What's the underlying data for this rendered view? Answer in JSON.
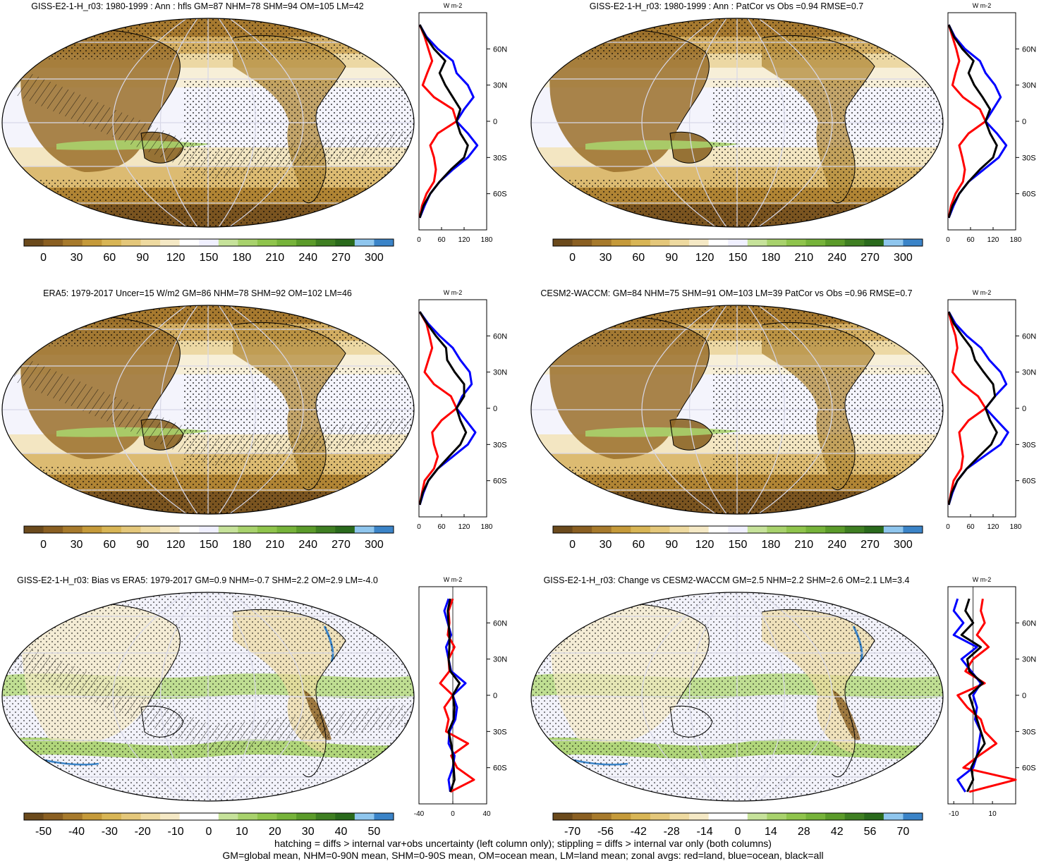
{
  "colors": {
    "land_line": "#ff0000",
    "ocean_line": "#0000ff",
    "all_line": "#000000",
    "full_scale": [
      "#6b4a1c",
      "#8a5f22",
      "#a77a2c",
      "#c59a3a",
      "#d8b555",
      "#e4c77a",
      "#eedaa0",
      "#f5e9c5",
      "#ffffff",
      "#f0f0ff",
      "#c6e29a",
      "#a8d26c",
      "#8fc44c",
      "#76b33a",
      "#5b9b2a",
      "#3f7f22",
      "#2a6a1c",
      "#8fc6ee",
      "#3b84c8"
    ],
    "diff_scale": [
      "#6b4a1c",
      "#8a5f22",
      "#a77a2c",
      "#c59a3a",
      "#d8b555",
      "#e4c77a",
      "#eedaa0",
      "#f5e9c5",
      "#ffffff",
      "#ffffff",
      "#c6e29a",
      "#a8d26c",
      "#8fc44c",
      "#76b33a",
      "#5b9b2a",
      "#3f7f22",
      "#2a6a1c",
      "#8fc6ee",
      "#3b84c8"
    ]
  },
  "zonal_units": "W m-2",
  "chart_data": [
    {
      "type": "heatmap",
      "title": "GISS-E2-1-H_r03: 1980-1999 : Ann : hfls GM=87 NHM=78 SHM=94 OM=105 LM=42",
      "colorbar_labels": [
        "0",
        "30",
        "60",
        "90",
        "120",
        "150",
        "180",
        "210",
        "240",
        "270",
        "300"
      ],
      "zonal_xticks": [
        "0",
        "60",
        "120",
        "180"
      ],
      "zonal_xlim": [
        0,
        180
      ],
      "zonal_yticks": [
        "60N",
        "30N",
        "0",
        "30S",
        "60S"
      ],
      "series": [
        {
          "name": "land",
          "lat": [
            80,
            70,
            60,
            50,
            40,
            30,
            20,
            10,
            0,
            -10,
            -20,
            -30,
            -40,
            -50,
            -60,
            -70,
            -80
          ],
          "values": [
            2,
            15,
            25,
            35,
            22,
            10,
            40,
            90,
            100,
            50,
            30,
            40,
            45,
            40,
            20,
            8,
            2
          ]
        },
        {
          "name": "ocean",
          "lat": [
            80,
            70,
            60,
            50,
            40,
            30,
            20,
            10,
            0,
            -10,
            -20,
            -30,
            -40,
            -50,
            -60,
            -70,
            -80
          ],
          "values": [
            2,
            20,
            50,
            90,
            100,
            130,
            145,
            120,
            100,
            130,
            155,
            130,
            90,
            55,
            30,
            15,
            2
          ]
        },
        {
          "name": "all",
          "lat": [
            80,
            70,
            60,
            50,
            40,
            30,
            20,
            10,
            0,
            -10,
            -20,
            -30,
            -40,
            -50,
            -60,
            -70,
            -80
          ],
          "values": [
            2,
            18,
            40,
            70,
            55,
            70,
            90,
            110,
            100,
            110,
            130,
            120,
            85,
            55,
            30,
            12,
            2
          ]
        }
      ]
    },
    {
      "type": "heatmap",
      "title": "GISS-E2-1-H_r03: 1980-1999 : Ann : PatCor vs Obs =0.94 RMSE=0.7",
      "colorbar_labels": [
        "0",
        "30",
        "60",
        "90",
        "120",
        "150",
        "180",
        "210",
        "240",
        "270",
        "300"
      ],
      "zonal_xticks": [
        "0",
        "60",
        "120",
        "180"
      ],
      "zonal_xlim": [
        0,
        180
      ],
      "zonal_yticks": [
        "60N",
        "30N",
        "0",
        "30S",
        "60S"
      ],
      "series": [
        {
          "name": "land",
          "lat": [
            80,
            70,
            60,
            50,
            40,
            30,
            20,
            10,
            0,
            -10,
            -20,
            -30,
            -40,
            -50,
            -60,
            -70,
            -80
          ],
          "values": [
            2,
            12,
            22,
            30,
            20,
            12,
            40,
            85,
            100,
            55,
            30,
            38,
            45,
            40,
            20,
            8,
            2
          ]
        },
        {
          "name": "ocean",
          "lat": [
            80,
            70,
            60,
            50,
            40,
            30,
            20,
            10,
            0,
            -10,
            -20,
            -30,
            -40,
            -50,
            -60,
            -70,
            -80
          ],
          "values": [
            2,
            18,
            45,
            85,
            100,
            125,
            140,
            120,
            100,
            130,
            155,
            135,
            95,
            55,
            30,
            15,
            2
          ]
        },
        {
          "name": "all",
          "lat": [
            80,
            70,
            60,
            50,
            40,
            30,
            20,
            10,
            0,
            -10,
            -20,
            -30,
            -40,
            -50,
            -60,
            -70,
            -80
          ],
          "values": [
            2,
            16,
            38,
            68,
            55,
            70,
            92,
            112,
            100,
            112,
            130,
            120,
            85,
            55,
            30,
            12,
            2
          ]
        }
      ]
    },
    {
      "type": "heatmap",
      "title": "ERA5: 1979-2017 Uncer=15 W/m2 GM=86 NHM=78 SHM=92 OM=102 LM=46",
      "colorbar_labels": [
        "0",
        "30",
        "60",
        "90",
        "120",
        "150",
        "180",
        "210",
        "240",
        "270",
        "300"
      ],
      "zonal_xticks": [
        "0",
        "60",
        "120",
        "180"
      ],
      "zonal_xlim": [
        0,
        180
      ],
      "zonal_yticks": [
        "60N",
        "30N",
        "0",
        "30S",
        "60S"
      ],
      "series": [
        {
          "name": "land",
          "lat": [
            80,
            70,
            60,
            50,
            40,
            30,
            20,
            10,
            0,
            -10,
            -20,
            -30,
            -40,
            -50,
            -60,
            -70,
            -80
          ],
          "values": [
            2,
            20,
            28,
            35,
            25,
            15,
            40,
            85,
            100,
            60,
            35,
            40,
            50,
            40,
            15,
            8,
            2
          ]
        },
        {
          "name": "ocean",
          "lat": [
            80,
            70,
            60,
            50,
            40,
            30,
            20,
            10,
            0,
            -10,
            -20,
            -30,
            -40,
            -50,
            -60,
            -70,
            -80
          ],
          "values": [
            2,
            25,
            55,
            90,
            110,
            135,
            140,
            115,
            100,
            125,
            150,
            130,
            90,
            50,
            25,
            12,
            2
          ]
        },
        {
          "name": "all",
          "lat": [
            80,
            70,
            60,
            50,
            40,
            30,
            20,
            10,
            0,
            -10,
            -20,
            -30,
            -40,
            -50,
            -60,
            -70,
            -80
          ],
          "values": [
            2,
            22,
            45,
            72,
            75,
            95,
            120,
            120,
            100,
            110,
            125,
            110,
            80,
            50,
            25,
            10,
            2
          ]
        }
      ]
    },
    {
      "type": "heatmap",
      "title": "CESM2-WACCM: GM=84 NHM=75 SHM=91 OM=103 LM=39 PatCor vs Obs =0.96 RMSE=0.7",
      "colorbar_labels": [
        "0",
        "30",
        "60",
        "90",
        "120",
        "150",
        "180",
        "210",
        "240",
        "270",
        "300"
      ],
      "zonal_xticks": [
        "0",
        "60",
        "120",
        "180"
      ],
      "zonal_xlim": [
        0,
        180
      ],
      "zonal_yticks": [
        "60N",
        "30N",
        "0",
        "30S",
        "60S"
      ],
      "series": [
        {
          "name": "land",
          "lat": [
            80,
            70,
            60,
            50,
            40,
            30,
            20,
            10,
            0,
            -10,
            -20,
            -30,
            -40,
            -50,
            -60,
            -70,
            -80
          ],
          "values": [
            2,
            10,
            20,
            25,
            18,
            12,
            38,
            80,
            100,
            55,
            30,
            35,
            40,
            35,
            15,
            8,
            2
          ]
        },
        {
          "name": "ocean",
          "lat": [
            80,
            70,
            60,
            50,
            40,
            30,
            20,
            10,
            0,
            -10,
            -20,
            -30,
            -40,
            -50,
            -60,
            -70,
            -80
          ],
          "values": [
            2,
            20,
            50,
            88,
            110,
            140,
            155,
            125,
            100,
            130,
            160,
            140,
            95,
            50,
            25,
            12,
            2
          ]
        },
        {
          "name": "all",
          "lat": [
            80,
            70,
            60,
            50,
            40,
            30,
            20,
            10,
            0,
            -10,
            -20,
            -30,
            -40,
            -50,
            -60,
            -70,
            -80
          ],
          "values": [
            2,
            16,
            38,
            62,
            72,
            95,
            120,
            125,
            100,
            112,
            130,
            115,
            82,
            50,
            25,
            10,
            2
          ]
        }
      ]
    },
    {
      "type": "heatmap",
      "title": "GISS-E2-1-H_r03: Bias vs ERA5: 1979-2017 GM=0.9 NHM=-0.7 SHM=2.2 OM=2.9 LM=-4.0",
      "colorbar_labels": [
        "-50",
        "-40",
        "-30",
        "-20",
        "-10",
        "0",
        "10",
        "20",
        "30",
        "40",
        "50"
      ],
      "zonal_xticks": [
        "-40",
        "0",
        "40"
      ],
      "zonal_xlim": [
        -40,
        40
      ],
      "zonal_yticks": [
        "60N",
        "30N",
        "0",
        "30S",
        "60S"
      ],
      "series": [
        {
          "name": "land",
          "lat": [
            80,
            70,
            60,
            50,
            40,
            30,
            20,
            10,
            0,
            -10,
            -20,
            -30,
            -40,
            -50,
            -60,
            -70,
            -80
          ],
          "values": [
            0,
            -5,
            -4,
            -6,
            2,
            -5,
            -4,
            -15,
            0,
            -10,
            -5,
            -8,
            18,
            -2,
            5,
            25,
            -3
          ]
        },
        {
          "name": "ocean",
          "lat": [
            80,
            70,
            60,
            50,
            40,
            30,
            20,
            10,
            0,
            -10,
            -20,
            -30,
            -40,
            -50,
            -60,
            -70,
            -80
          ],
          "values": [
            -5,
            -10,
            -6,
            -2,
            -8,
            -5,
            -2,
            15,
            0,
            5,
            3,
            -4,
            -5,
            2,
            0,
            -5,
            -3
          ]
        },
        {
          "name": "all",
          "lat": [
            80,
            70,
            60,
            50,
            40,
            30,
            20,
            10,
            0,
            -10,
            -20,
            -30,
            -40,
            -50,
            -60,
            -70,
            -80
          ],
          "values": [
            -3,
            -6,
            -5,
            -4,
            -4,
            -5,
            -3,
            8,
            0,
            2,
            1,
            -5,
            -2,
            0,
            1,
            2,
            -3
          ]
        }
      ]
    },
    {
      "type": "heatmap",
      "title": "GISS-E2-1-H_r03: Change vs CESM2-WACCM GM=2.5 NHM=2.2 SHM=2.6 OM=2.1 LM=3.4",
      "colorbar_labels": [
        "-70",
        "-56",
        "-42",
        "-28",
        "-14",
        "0",
        "14",
        "28",
        "42",
        "56",
        "70"
      ],
      "zonal_xticks": [
        "-10",
        "10"
      ],
      "zonal_xlim": [
        -13,
        22
      ],
      "zonal_yticks": [
        "60N",
        "30N",
        "0",
        "30S",
        "60S"
      ],
      "series": [
        {
          "name": "land",
          "lat": [
            80,
            70,
            60,
            50,
            40,
            30,
            20,
            10,
            0,
            -10,
            -20,
            -30,
            -40,
            -50,
            -60,
            -70,
            -80
          ],
          "values": [
            5,
            4,
            6,
            2,
            8,
            0,
            -4,
            6,
            -8,
            -3,
            4,
            6,
            12,
            3,
            -5,
            22,
            -2
          ]
        },
        {
          "name": "ocean",
          "lat": [
            80,
            70,
            60,
            50,
            40,
            30,
            20,
            10,
            0,
            -10,
            -20,
            -30,
            -40,
            -50,
            -60,
            -70,
            -80
          ],
          "values": [
            -8,
            -10,
            -5,
            -10,
            2,
            -6,
            -1,
            4,
            0,
            2,
            1,
            4,
            3,
            2,
            0,
            -8,
            -4
          ]
        },
        {
          "name": "all",
          "lat": [
            80,
            70,
            60,
            50,
            40,
            30,
            20,
            10,
            0,
            -10,
            -20,
            -30,
            -40,
            -50,
            -60,
            -70,
            -80
          ],
          "values": [
            -2,
            -4,
            0,
            -6,
            4,
            -3,
            -2,
            5,
            -2,
            0,
            2,
            4,
            6,
            2,
            -1,
            0,
            -3
          ]
        }
      ]
    }
  ],
  "footer": {
    "line1": "hatching = diffs > internal var+obs uncertainty (left column only); stippling = diffs > internal var only (both columns)",
    "line2": "GM=global mean, NHM=0-90N mean, SHM=0-90S mean, OM=ocean mean, LM=land mean; zonal avgs: red=land, blue=ocean, black=all"
  }
}
